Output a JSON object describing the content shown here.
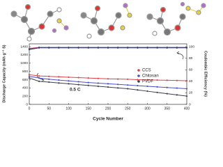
{
  "chart_data": {
    "type": "line",
    "x": [
      0,
      25,
      50,
      75,
      100,
      125,
      150,
      175,
      200,
      225,
      250,
      275,
      300,
      325,
      350,
      375,
      400
    ],
    "series": [
      {
        "name": "CCS",
        "color": "#e0404a",
        "values": [
          720,
          690,
          680,
          670,
          660,
          650,
          640,
          630,
          620,
          615,
          610,
          600,
          595,
          590,
          585,
          580,
          575
        ]
      },
      {
        "name": "Chitosan",
        "color": "#4a4fd0",
        "values": [
          680,
          640,
          610,
          590,
          570,
          550,
          530,
          515,
          500,
          485,
          470,
          455,
          440,
          425,
          410,
          395,
          380
        ]
      },
      {
        "name": "PVDF",
        "color": "#3a3f4a",
        "values": [
          640,
          560,
          540,
          520,
          500,
          480,
          460,
          440,
          420,
          400,
          380,
          350,
          320,
          290,
          260,
          230,
          200
        ]
      },
      {
        "color": "#e0404a",
        "axis": "y2",
        "values": [
          97,
          99,
          99,
          99,
          99,
          99,
          99,
          99,
          99,
          99,
          99,
          99,
          99,
          99,
          99,
          99,
          99
        ]
      },
      {
        "color": "#4a4fd0",
        "axis": "y2",
        "values": [
          96,
          98.5,
          98.5,
          98.5,
          98.5,
          98.5,
          98.5,
          98.5,
          98.5,
          98.5,
          98.5,
          98.5,
          98.5,
          98.5,
          98.5,
          98.5,
          98.5
        ]
      },
      {
        "color": "#3a3f4a",
        "axis": "y2",
        "values": [
          95,
          98,
          98,
          98,
          98,
          98,
          98,
          98,
          98,
          98,
          98,
          98,
          98,
          98,
          98,
          98,
          98
        ]
      }
    ],
    "xlabel": "Cycle Number",
    "ylabel": "Discharge Capacity (mAh g⁻¹ S)",
    "y2label": "Coulombic Efficiency (%)",
    "annotation": "0.5 C",
    "xlim": [
      0,
      400
    ],
    "xticks": [
      0,
      50,
      100,
      150,
      200,
      250,
      300,
      350,
      400
    ],
    "ylim": [
      0,
      1470
    ],
    "yticks": [
      0,
      200,
      400,
      600,
      800,
      1000,
      1200,
      1400
    ],
    "y2lim": [
      0,
      105
    ],
    "y2ticks": [
      0,
      20,
      40,
      60,
      80,
      100
    ]
  }
}
